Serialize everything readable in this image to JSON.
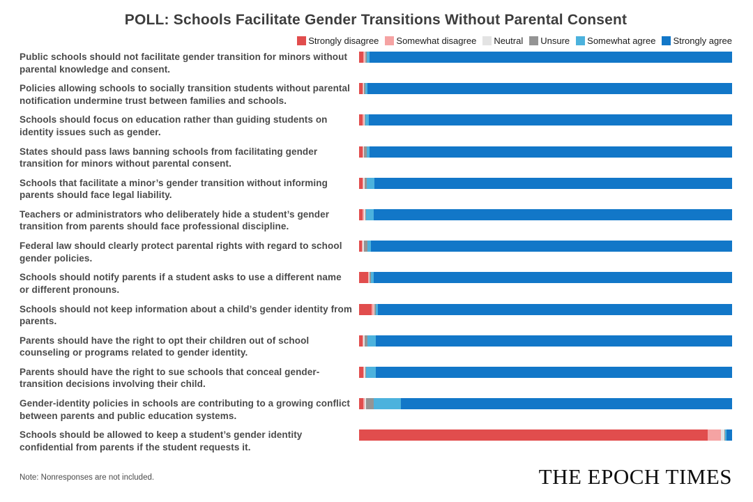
{
  "title": "POLL: Schools Facilitate Gender Transitions Without Parental Consent",
  "note": "Note: Nonresponses are not included.",
  "brand": "THE EPOCH TIMES",
  "chart_data": {
    "type": "bar",
    "orientation": "horizontal",
    "stacked": true,
    "unit": "percent",
    "xlim": [
      0,
      100
    ],
    "grid": false,
    "legend_position": "top-right",
    "categories": [
      "Public schools should not facilitate gender transition for minors without parental knowledge and consent.",
      "Policies allowing schools to socially transition students without parental notification undermine trust between families and schools.",
      "Schools should focus on education rather than guiding students on identity issues such as gender.",
      "States should pass laws banning schools from facilitating gender transition for minors without parental consent.",
      "Schools that facilitate a minor’s gender transition without informing parents should face legal liability.",
      "Teachers or administrators who deliberately hide a student’s gender transition from parents should face professional discipline.",
      "Federal law should clearly protect parental rights with regard to school gender policies.",
      "Schools should notify parents if a student asks to use a different name or different pronouns.",
      "Schools should not keep information about a child’s gender identity from parents.",
      "Parents should have the right to opt their children out of school counseling or programs related to gender identity.",
      "Parents should have the right to sue schools that conceal gender-transition decisions involving their child.",
      "Gender-identity policies in schools are contributing to a growing conflict between parents and public education systems.",
      "Schools should be allowed to keep a student’s gender identity confidential from parents if the student requests it."
    ],
    "series": [
      {
        "name": "Strongly disagree",
        "color": "#e14d4d",
        "values": [
          1.2,
          1.0,
          1.0,
          1.0,
          0.9,
          1.0,
          0.8,
          2.4,
          3.4,
          0.9,
          1.1,
          1.1,
          93.4
        ]
      },
      {
        "name": "Somewhat disagree",
        "color": "#f5a3a3",
        "values": [
          0.3,
          0.2,
          0.3,
          0.2,
          0.3,
          0.4,
          0.2,
          0.3,
          0.5,
          0.2,
          0.3,
          0.4,
          3.6
        ]
      },
      {
        "name": "Neutral",
        "color": "#e3e3e3",
        "values": [
          0.2,
          0.2,
          0.2,
          0.2,
          0.3,
          0.2,
          0.4,
          0.2,
          0.3,
          0.4,
          0.2,
          0.3,
          0.9
        ]
      },
      {
        "name": "Unsure",
        "color": "#949494",
        "values": [
          0.3,
          0.2,
          0.2,
          0.6,
          0.6,
          0.3,
          0.8,
          0.2,
          0.2,
          0.8,
          0.3,
          2.2,
          0.2
        ]
      },
      {
        "name": "Somewhat agree",
        "color": "#4cb2dd",
        "values": [
          0.8,
          0.7,
          0.9,
          0.8,
          2.1,
          2.0,
          1.0,
          0.9,
          0.6,
          2.1,
          2.6,
          7.3,
          0.4
        ]
      },
      {
        "name": "Strongly agree",
        "color": "#1277c8",
        "values": [
          97.2,
          97.7,
          97.4,
          97.2,
          95.8,
          96.1,
          96.8,
          96.0,
          95.0,
          95.6,
          95.5,
          88.7,
          1.5
        ]
      }
    ]
  }
}
